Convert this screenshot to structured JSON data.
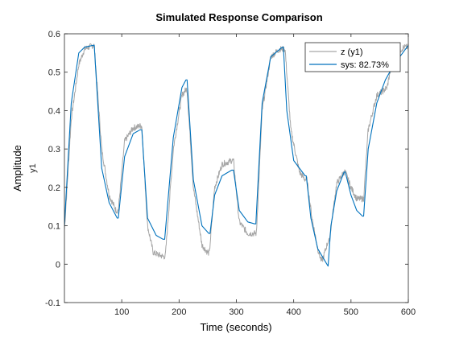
{
  "chart_data": {
    "type": "line",
    "title": "Simulated Response Comparison",
    "xlabel": "Time (seconds)",
    "ylabel": "Amplitude",
    "ysublabel": "y1",
    "xlim": [
      0,
      600
    ],
    "ylim": [
      -0.1,
      0.6
    ],
    "xticks": [
      100,
      200,
      300,
      400,
      500,
      600
    ],
    "yticks": [
      -0.1,
      0,
      0.1,
      0.2,
      0.3,
      0.4,
      0.5,
      0.6
    ],
    "grid": false,
    "legend_position": "top-right",
    "series": [
      {
        "name": "z (y1)",
        "color": "#a6a6a6",
        "noisy": true,
        "x": [
          0,
          12,
          25,
          35,
          50,
          52,
          65,
          78,
          90,
          94,
          105,
          120,
          132,
          135,
          145,
          155,
          172,
          176,
          190,
          205,
          212,
          214,
          225,
          240,
          250,
          253,
          262,
          275,
          292,
          295,
          305,
          320,
          332,
          335,
          345,
          360,
          375,
          382,
          385,
          395,
          410,
          420,
          423,
          432,
          442,
          448,
          450,
          460,
          462,
          475,
          488,
          490,
          500,
          510,
          520,
          522,
          530,
          545,
          555,
          563,
          568,
          580,
          592,
          600
        ],
        "y": [
          0.09,
          0.38,
          0.52,
          0.56,
          0.57,
          0.57,
          0.3,
          0.18,
          0.14,
          0.14,
          0.32,
          0.355,
          0.36,
          0.36,
          0.1,
          0.03,
          0.02,
          0.02,
          0.3,
          0.44,
          0.455,
          0.455,
          0.2,
          0.05,
          0.03,
          0.03,
          0.2,
          0.26,
          0.27,
          0.27,
          0.11,
          0.08,
          0.08,
          0.08,
          0.4,
          0.54,
          0.56,
          0.56,
          0.56,
          0.35,
          0.24,
          0.22,
          0.22,
          0.12,
          0.04,
          0.01,
          0.01,
          0.06,
          0.06,
          0.21,
          0.24,
          0.24,
          0.2,
          0.17,
          0.17,
          0.17,
          0.35,
          0.44,
          0.45,
          0.46,
          0.5,
          0.55,
          0.565,
          0.565
        ]
      },
      {
        "name": "sys: 82.73%",
        "color": "#0072bd",
        "noisy": false,
        "x": [
          0,
          12,
          25,
          35,
          50,
          52,
          65,
          78,
          92,
          94,
          105,
          120,
          132,
          135,
          145,
          160,
          172,
          175,
          190,
          205,
          212,
          214,
          225,
          240,
          252,
          254,
          262,
          275,
          292,
          295,
          305,
          320,
          332,
          334,
          345,
          360,
          380,
          382,
          388,
          400,
          420,
          422,
          430,
          442,
          458,
          460,
          465,
          475,
          488,
          490,
          500,
          510,
          520,
          522,
          530,
          545,
          560,
          575,
          590,
          600
        ],
        "y": [
          0.1,
          0.42,
          0.55,
          0.565,
          0.57,
          0.57,
          0.25,
          0.16,
          0.12,
          0.12,
          0.28,
          0.34,
          0.35,
          0.35,
          0.12,
          0.075,
          0.065,
          0.065,
          0.33,
          0.46,
          0.48,
          0.48,
          0.22,
          0.1,
          0.08,
          0.08,
          0.18,
          0.23,
          0.245,
          0.245,
          0.14,
          0.11,
          0.105,
          0.105,
          0.42,
          0.54,
          0.565,
          0.565,
          0.4,
          0.27,
          0.23,
          0.23,
          0.12,
          0.04,
          0.0,
          -0.005,
          0.1,
          0.19,
          0.24,
          0.24,
          0.18,
          0.14,
          0.125,
          0.125,
          0.3,
          0.42,
          0.48,
          0.52,
          0.55,
          0.57
        ]
      }
    ]
  }
}
